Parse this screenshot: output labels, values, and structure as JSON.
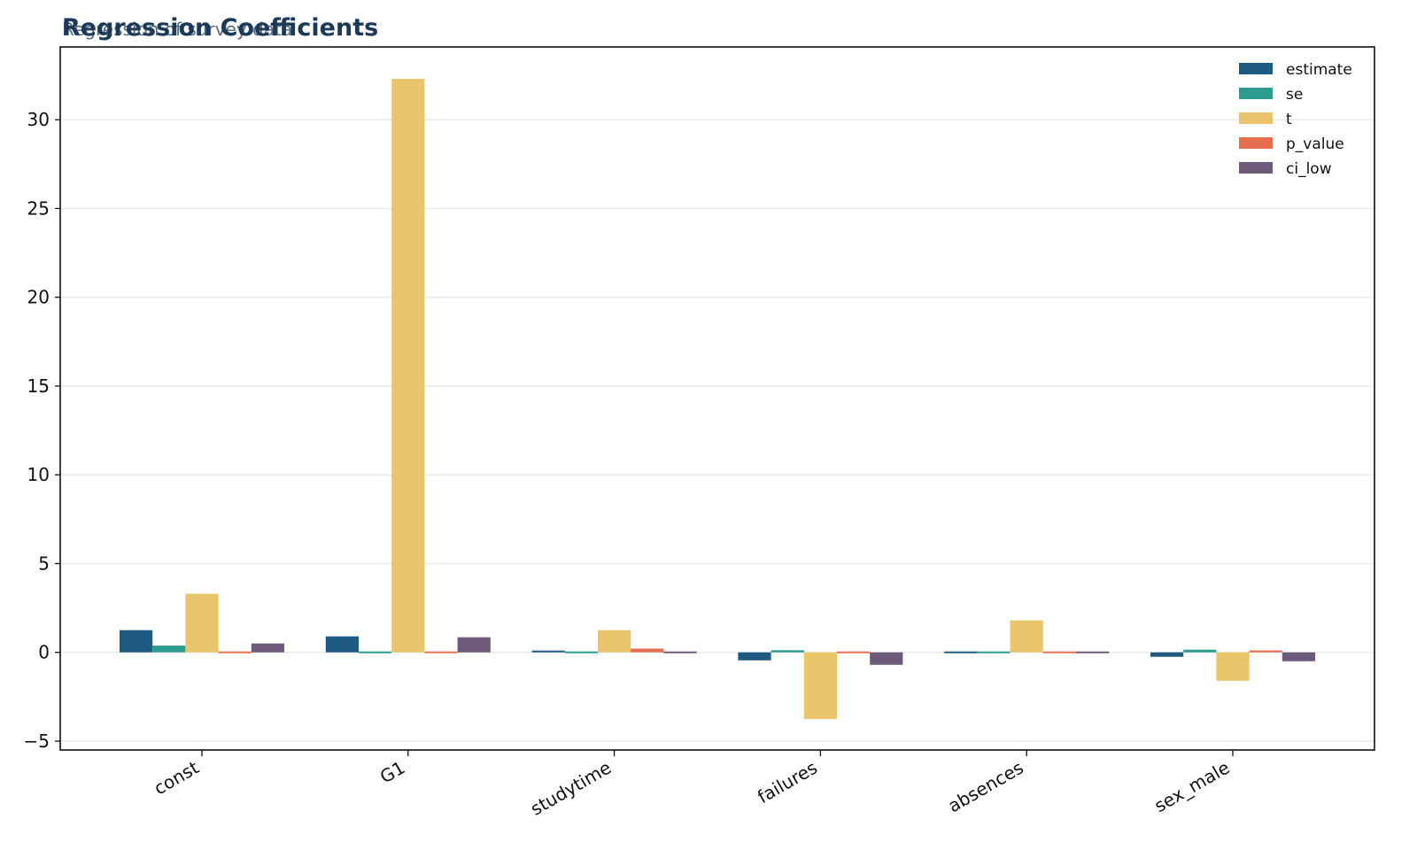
{
  "chart_data": {
    "type": "bar",
    "title": "Regression Coefficients",
    "subtitle": "Regression of survey data",
    "xlabel": "",
    "ylabel": "",
    "categories": [
      "const",
      "G1",
      "studytime",
      "failures",
      "absences",
      "sex_male"
    ],
    "series": [
      {
        "name": "estimate",
        "color": "#1f5a82",
        "values": [
          1.25,
          0.9,
          0.1,
          -0.45,
          0.02,
          -0.25
        ]
      },
      {
        "name": "se",
        "color": "#2a9d8f",
        "values": [
          0.38,
          0.03,
          0.09,
          0.12,
          0.01,
          0.15
        ]
      },
      {
        "name": "t",
        "color": "#e9c46a",
        "values": [
          3.3,
          32.3,
          1.25,
          -3.75,
          1.8,
          -1.6
        ]
      },
      {
        "name": "p_value",
        "color": "#e76f51",
        "values": [
          0.0,
          0.0,
          0.21,
          0.0,
          0.07,
          0.11
        ]
      },
      {
        "name": "ci_low",
        "color": "#6d597a",
        "values": [
          0.5,
          0.85,
          -0.08,
          -0.7,
          0.0,
          -0.5
        ]
      }
    ],
    "ylim": [
      -5.5,
      34.1
    ],
    "yticks": [
      -5,
      0,
      5,
      10,
      15,
      20,
      25,
      30
    ],
    "ytick_labels": [
      "−5",
      "0",
      "5",
      "10",
      "15",
      "20",
      "25",
      "30"
    ],
    "grid": true,
    "legend_position": "top-right"
  }
}
